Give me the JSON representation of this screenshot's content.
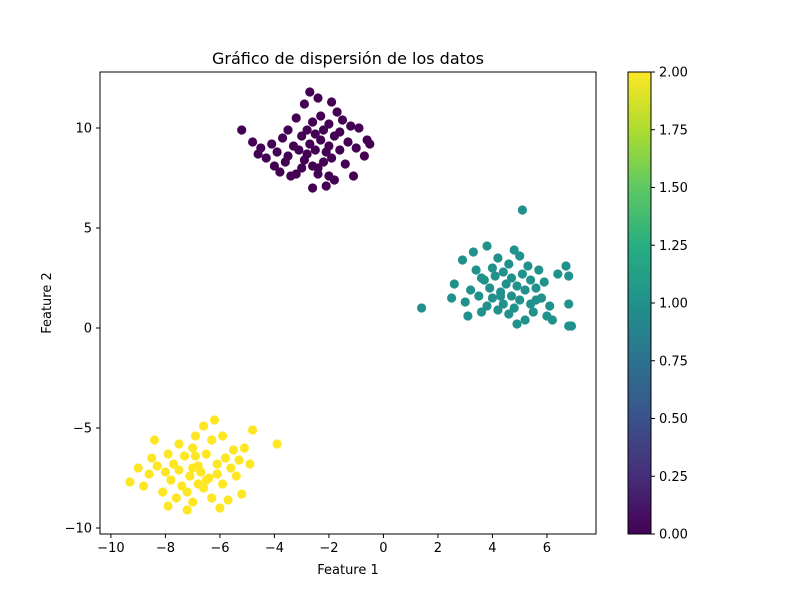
{
  "chart_data": {
    "type": "scatter",
    "title": "Gráfico de dispersión de los datos",
    "xlabel": "Feature 1",
    "ylabel": "Feature 2",
    "xlim": [
      -10.4,
      7.8
    ],
    "ylim": [
      -10.3,
      12.8
    ],
    "x_ticks": [
      -10,
      -8,
      -6,
      -4,
      -2,
      0,
      2,
      4,
      6
    ],
    "x_tick_labels": [
      "−10",
      "−8",
      "−6",
      "−4",
      "−2",
      "0",
      "2",
      "4",
      "6"
    ],
    "y_ticks": [
      -10,
      -5,
      0,
      5,
      10
    ],
    "y_tick_labels": [
      "−10",
      "−5",
      "0",
      "5",
      "10"
    ],
    "grid": false,
    "legend": "none",
    "colormap": "viridis",
    "colorbar": {
      "min": 0.0,
      "max": 2.0,
      "ticks": [
        0.0,
        0.25,
        0.5,
        0.75,
        1.0,
        1.25,
        1.5,
        1.75,
        2.0
      ],
      "tick_labels": [
        "0.00",
        "0.25",
        "0.50",
        "0.75",
        "1.00",
        "1.25",
        "1.50",
        "1.75",
        "2.00"
      ]
    },
    "series": [
      {
        "label_value": 0,
        "color": "#440154",
        "points": [
          [
            -5.2,
            9.9
          ],
          [
            -4.8,
            9.3
          ],
          [
            -4.5,
            9.0
          ],
          [
            -4.3,
            8.5
          ],
          [
            -4.1,
            9.2
          ],
          [
            -4.0,
            8.1
          ],
          [
            -3.9,
            8.8
          ],
          [
            -3.8,
            7.8
          ],
          [
            -3.7,
            9.5
          ],
          [
            -3.6,
            8.3
          ],
          [
            -3.5,
            9.9
          ],
          [
            -3.5,
            8.6
          ],
          [
            -3.4,
            7.6
          ],
          [
            -3.3,
            9.1
          ],
          [
            -3.2,
            10.5
          ],
          [
            -3.1,
            8.9
          ],
          [
            -3.0,
            8.0
          ],
          [
            -3.0,
            9.6
          ],
          [
            -2.9,
            11.2
          ],
          [
            -2.9,
            8.4
          ],
          [
            -2.8,
            9.9
          ],
          [
            -2.8,
            8.7
          ],
          [
            -2.7,
            11.8
          ],
          [
            -2.7,
            9.2
          ],
          [
            -2.6,
            8.1
          ],
          [
            -2.6,
            10.3
          ],
          [
            -2.5,
            9.7
          ],
          [
            -2.5,
            8.9
          ],
          [
            -2.4,
            11.5
          ],
          [
            -2.4,
            7.7
          ],
          [
            -2.3,
            9.4
          ],
          [
            -2.3,
            10.6
          ],
          [
            -2.2,
            8.3
          ],
          [
            -2.2,
            9.9
          ],
          [
            -2.1,
            7.1
          ],
          [
            -2.1,
            8.8
          ],
          [
            -2.0,
            10.2
          ],
          [
            -2.0,
            9.1
          ],
          [
            -1.9,
            11.3
          ],
          [
            -1.9,
            8.5
          ],
          [
            -1.8,
            9.6
          ],
          [
            -1.8,
            7.4
          ],
          [
            -1.7,
            10.8
          ],
          [
            -1.6,
            8.9
          ],
          [
            -1.6,
            9.8
          ],
          [
            -1.5,
            10.4
          ],
          [
            -1.4,
            8.2
          ],
          [
            -1.3,
            9.3
          ],
          [
            -1.2,
            10.1
          ],
          [
            -1.1,
            7.6
          ],
          [
            -1.0,
            9.0
          ],
          [
            -0.9,
            10.0
          ],
          [
            -0.7,
            8.6
          ],
          [
            -0.6,
            9.4
          ],
          [
            -0.5,
            9.2
          ],
          [
            -2.4,
            8.0
          ],
          [
            -2.6,
            7.0
          ],
          [
            -3.2,
            7.7
          ],
          [
            -4.6,
            8.7
          ],
          [
            -2.0,
            7.6
          ]
        ]
      },
      {
        "label_value": 1,
        "color": "#21918c",
        "points": [
          [
            1.4,
            1.0
          ],
          [
            2.5,
            1.5
          ],
          [
            2.6,
            2.2
          ],
          [
            2.9,
            3.4
          ],
          [
            3.0,
            1.3
          ],
          [
            3.1,
            0.6
          ],
          [
            3.2,
            1.9
          ],
          [
            3.3,
            3.8
          ],
          [
            3.4,
            2.9
          ],
          [
            3.5,
            1.6
          ],
          [
            3.6,
            0.8
          ],
          [
            3.7,
            2.4
          ],
          [
            3.8,
            4.1
          ],
          [
            3.8,
            1.1
          ],
          [
            3.9,
            2.0
          ],
          [
            4.0,
            3.0
          ],
          [
            4.0,
            1.5
          ],
          [
            4.1,
            2.6
          ],
          [
            4.2,
            0.9
          ],
          [
            4.2,
            3.5
          ],
          [
            4.3,
            1.8
          ],
          [
            4.4,
            2.8
          ],
          [
            4.4,
            1.2
          ],
          [
            4.5,
            2.2
          ],
          [
            4.6,
            3.2
          ],
          [
            4.6,
            0.7
          ],
          [
            4.7,
            1.6
          ],
          [
            4.7,
            2.5
          ],
          [
            4.8,
            3.9
          ],
          [
            4.8,
            1.0
          ],
          [
            4.9,
            2.1
          ],
          [
            5.0,
            3.6
          ],
          [
            5.0,
            1.4
          ],
          [
            5.1,
            5.9
          ],
          [
            5.1,
            2.7
          ],
          [
            5.2,
            0.4
          ],
          [
            5.2,
            1.9
          ],
          [
            5.3,
            3.1
          ],
          [
            5.4,
            1.2
          ],
          [
            5.4,
            2.4
          ],
          [
            5.5,
            0.8
          ],
          [
            5.6,
            2.0
          ],
          [
            5.7,
            2.9
          ],
          [
            5.8,
            1.5
          ],
          [
            5.9,
            2.3
          ],
          [
            6.0,
            0.6
          ],
          [
            6.1,
            1.1
          ],
          [
            6.2,
            0.4
          ],
          [
            6.4,
            2.7
          ],
          [
            6.7,
            3.1
          ],
          [
            6.8,
            2.6
          ],
          [
            6.8,
            1.2
          ],
          [
            6.8,
            0.1
          ],
          [
            6.9,
            0.1
          ],
          [
            4.3,
            1.6
          ],
          [
            4.9,
            0.2
          ],
          [
            5.6,
            1.4
          ],
          [
            3.6,
            2.5
          ]
        ]
      },
      {
        "label_value": 2,
        "color": "#fde725",
        "points": [
          [
            -9.3,
            -7.7
          ],
          [
            -9.0,
            -7.0
          ],
          [
            -8.8,
            -7.9
          ],
          [
            -8.6,
            -7.3
          ],
          [
            -8.5,
            -6.5
          ],
          [
            -8.4,
            -5.6
          ],
          [
            -8.3,
            -6.9
          ],
          [
            -8.1,
            -8.2
          ],
          [
            -8.0,
            -7.2
          ],
          [
            -7.9,
            -6.3
          ],
          [
            -7.9,
            -8.9
          ],
          [
            -7.8,
            -7.6
          ],
          [
            -7.7,
            -6.8
          ],
          [
            -7.6,
            -8.5
          ],
          [
            -7.5,
            -7.1
          ],
          [
            -7.5,
            -5.8
          ],
          [
            -7.4,
            -7.9
          ],
          [
            -7.3,
            -6.4
          ],
          [
            -7.2,
            -8.2
          ],
          [
            -7.2,
            -9.1
          ],
          [
            -7.1,
            -7.4
          ],
          [
            -7.0,
            -6.0
          ],
          [
            -7.0,
            -8.7
          ],
          [
            -6.9,
            -5.4
          ],
          [
            -6.8,
            -7.8
          ],
          [
            -6.8,
            -6.9
          ],
          [
            -6.7,
            -7.2
          ],
          [
            -6.6,
            -4.9
          ],
          [
            -6.6,
            -8.0
          ],
          [
            -6.5,
            -6.3
          ],
          [
            -6.4,
            -7.5
          ],
          [
            -6.3,
            -5.6
          ],
          [
            -6.3,
            -8.5
          ],
          [
            -6.2,
            -4.6
          ],
          [
            -6.1,
            -6.8
          ],
          [
            -6.1,
            -7.3
          ],
          [
            -6.0,
            -9.0
          ],
          [
            -5.9,
            -5.4
          ],
          [
            -5.9,
            -7.8
          ],
          [
            -5.8,
            -6.5
          ],
          [
            -5.7,
            -8.6
          ],
          [
            -5.6,
            -7.0
          ],
          [
            -5.5,
            -6.1
          ],
          [
            -5.4,
            -7.4
          ],
          [
            -5.3,
            -6.6
          ],
          [
            -5.2,
            -8.3
          ],
          [
            -5.1,
            -6.0
          ],
          [
            -4.9,
            -6.8
          ],
          [
            -4.8,
            -5.1
          ],
          [
            -3.9,
            -5.8
          ],
          [
            -7.0,
            -7.0
          ],
          [
            -6.5,
            -7.6
          ],
          [
            -6.9,
            -6.4
          ]
        ]
      }
    ]
  }
}
